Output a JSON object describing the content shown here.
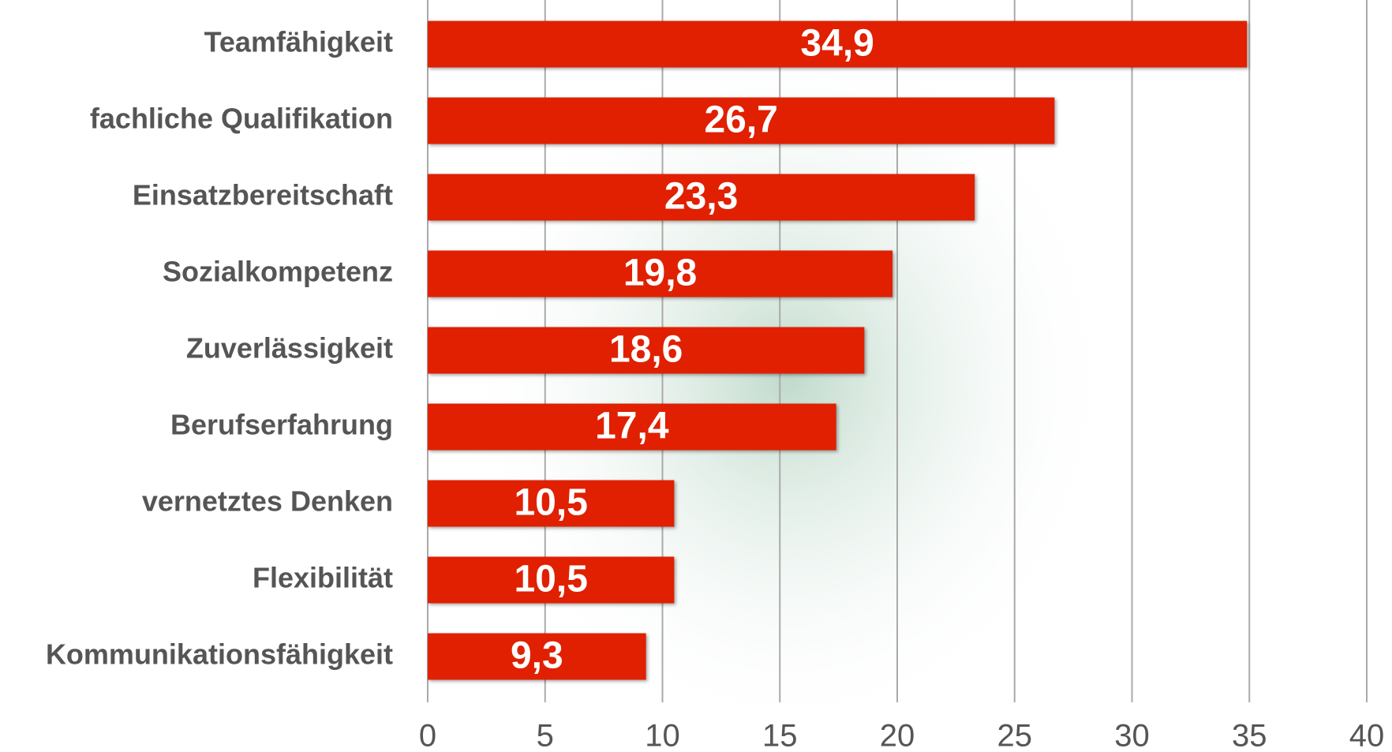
{
  "chart_data": {
    "type": "bar",
    "orientation": "horizontal",
    "categories": [
      "Teamfähigkeit",
      "fachliche Qualifikation",
      "Einsatzbereitschaft",
      "Sozialkompetenz",
      "Zuverlässigkeit",
      "Berufserfahrung",
      "vernetztes Denken",
      "Flexibilität",
      "Kommunikationsfähigkeit"
    ],
    "values": [
      34.9,
      26.7,
      23.3,
      19.8,
      18.6,
      17.4,
      10.5,
      10.5,
      9.3
    ],
    "value_labels": [
      "34,9",
      "26,7",
      "23,3",
      "19,8",
      "18,6",
      "17,4",
      "10,5",
      "10,5",
      "9,3"
    ],
    "color": "#e02000",
    "xlim": [
      0,
      40
    ],
    "xticks": [
      0,
      5,
      10,
      15,
      20,
      25,
      30,
      35,
      40
    ],
    "grid": true
  }
}
